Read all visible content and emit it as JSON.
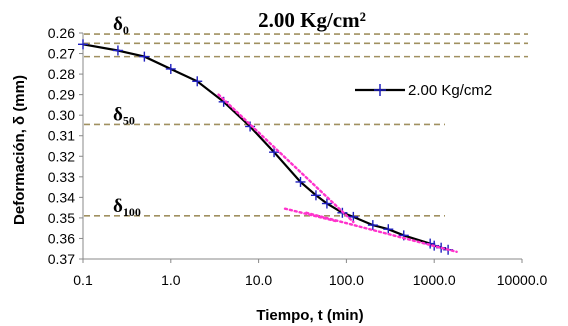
{
  "chart_data": {
    "type": "line",
    "title": "2.00 Kg/cm²",
    "xlabel": "Tiempo, t (min)",
    "ylabel": "Deformación, δ (mm)",
    "x_scale": "log",
    "xlim": [
      0.1,
      10000
    ],
    "ylim": [
      0.26,
      0.37
    ],
    "y_inverted": true,
    "x_ticks": [
      "0.1",
      "1.0",
      "10.0",
      "100.0",
      "1000.0",
      "10000.0"
    ],
    "y_ticks": [
      "0.26",
      "0.27",
      "0.28",
      "0.29",
      "0.30",
      "0.31",
      "0.32",
      "0.33",
      "0.34",
      "0.35",
      "0.36",
      "0.37"
    ],
    "legend_position": "right",
    "colors": {
      "series": "#000000",
      "markers": "#1f1fbf",
      "tangent": "#ff33cc",
      "reference": "#a09060"
    },
    "series": [
      {
        "name": "2.00 Kg/cm2",
        "x": [
          0.1,
          0.25,
          0.5,
          1,
          2,
          4,
          8,
          15,
          30,
          45,
          60,
          90,
          120,
          200,
          300,
          450,
          900,
          1000,
          1200,
          1440
        ],
        "y": [
          0.2655,
          0.2685,
          0.2715,
          0.2775,
          0.2835,
          0.2935,
          0.3055,
          0.318,
          0.3325,
          0.339,
          0.343,
          0.3475,
          0.3495,
          0.3535,
          0.3555,
          0.3585,
          0.3625,
          0.3635,
          0.3645,
          0.3655
        ]
      }
    ],
    "tangent_lines": [
      {
        "x": [
          3.5,
          120
        ],
        "y": [
          0.29,
          0.352
        ]
      },
      {
        "x": [
          20,
          75
        ],
        "y": [
          0.3455,
          0.3515
        ]
      },
      {
        "x": [
          35,
          1800
        ],
        "y": [
          0.3475,
          0.3665
        ]
      }
    ],
    "reference_lines": [
      {
        "label": "δ0",
        "y": [
          0.2605,
          0.265,
          0.2715
        ]
      },
      {
        "label": "δ50",
        "y": [
          0.3045
        ]
      },
      {
        "label": "δ100",
        "y": [
          0.349
        ]
      }
    ],
    "annotations": [
      {
        "base": "δ",
        "sub": "0",
        "y": 0.2605
      },
      {
        "base": "δ",
        "sub": "50",
        "y": 0.3045
      },
      {
        "base": "δ",
        "sub": "100",
        "y": 0.349
      }
    ]
  }
}
